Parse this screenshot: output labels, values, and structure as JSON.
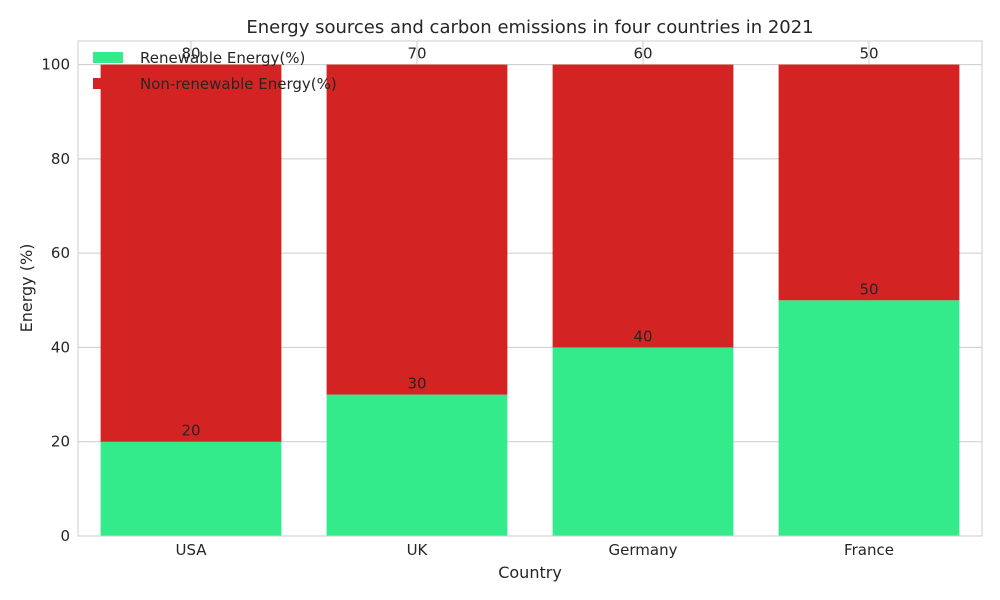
{
  "chart_data": {
    "type": "bar",
    "stacked": true,
    "title": "Energy sources and carbon emissions in four countries in 2021",
    "xlabel": "Country",
    "ylabel": "Energy (%)",
    "categories": [
      "USA",
      "UK",
      "Germany",
      "France"
    ],
    "series": [
      {
        "name": "Renewable Energy(%)",
        "values": [
          20,
          30,
          40,
          50
        ],
        "color": "#33eb8a"
      },
      {
        "name": "Non-renewable Energy(%)",
        "values": [
          80,
          70,
          60,
          50
        ],
        "color": "#d42323"
      }
    ],
    "ylim": [
      0,
      105
    ],
    "yticks": [
      0,
      20,
      40,
      60,
      80,
      100
    ],
    "grid": true,
    "legend_position": "top-left"
  }
}
